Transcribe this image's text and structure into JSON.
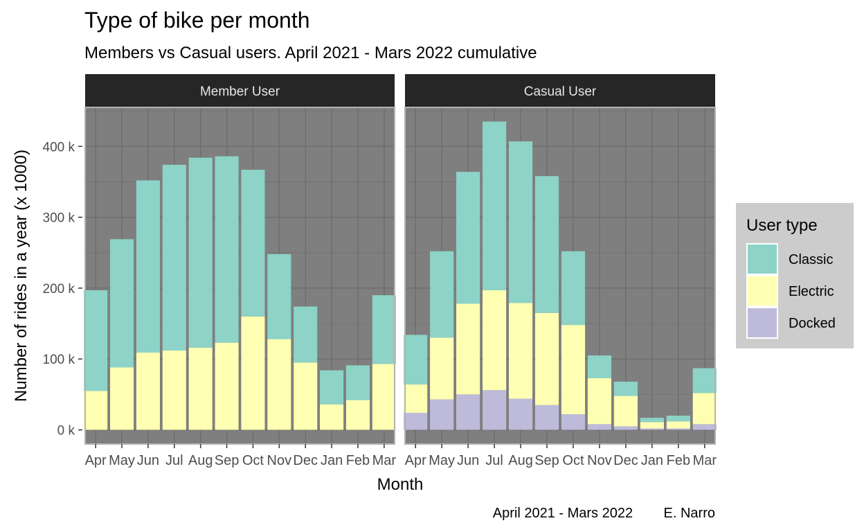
{
  "chart_data": {
    "type": "bar",
    "stacked": true,
    "faceted": true,
    "title": "Type of bike per month",
    "subtitle": "Members vs Casual users. April 2021 - Mars 2022 cumulative",
    "xlabel": "Month",
    "ylabel": "Number of rides in a year (x 1000)",
    "caption": "April 2021 - Mars 2022        E. Narro",
    "categories": [
      "Apr",
      "May",
      "Jun",
      "Jul",
      "Aug",
      "Sep",
      "Oct",
      "Nov",
      "Dec",
      "Jan",
      "Feb",
      "Mar"
    ],
    "ylim": [
      0,
      440
    ],
    "yticks": [
      0,
      100,
      200,
      300,
      400
    ],
    "ytick_labels": [
      "0 k",
      "100 k",
      "200 k",
      "300 k",
      "400 k"
    ],
    "grid": true,
    "legend": {
      "title": "User type",
      "position": "right",
      "entries": [
        "Classic",
        "Electric",
        "Docked"
      ]
    },
    "colors": {
      "Classic": "#8DD3C7",
      "Electric": "#FFFFB3",
      "Docked": "#BEBADA",
      "panel_background": "#7F7F7F",
      "strip_background": "#262626",
      "strip_text": "#E6E6E6",
      "legend_background": "#CCCCCC"
    },
    "panels": [
      {
        "label": "Member User",
        "series": [
          {
            "name": "Docked",
            "values": [
              0,
              0,
              0,
              0,
              0,
              0,
              0,
              0,
              0,
              0,
              0,
              0
            ]
          },
          {
            "name": "Electric",
            "values": [
              55,
              88,
              109,
              112,
              116,
              123,
              160,
              128,
              95,
              36,
              42,
              93
            ]
          },
          {
            "name": "Classic",
            "values": [
              142,
              181,
              243,
              262,
              268,
              263,
              207,
              120,
              79,
              48,
              49,
              97
            ]
          }
        ]
      },
      {
        "label": "Casual User",
        "series": [
          {
            "name": "Docked",
            "values": [
              24,
              43,
              50,
              56,
              44,
              35,
              22,
              8,
              5,
              2,
              2,
              8
            ]
          },
          {
            "name": "Electric",
            "values": [
              40,
              87,
              128,
              141,
              135,
              130,
              126,
              65,
              43,
              9,
              10,
              44
            ]
          },
          {
            "name": "Classic",
            "values": [
              70,
              122,
              186,
              238,
              228,
              193,
              104,
              32,
              20,
              6,
              8,
              35
            ]
          }
        ]
      }
    ]
  }
}
